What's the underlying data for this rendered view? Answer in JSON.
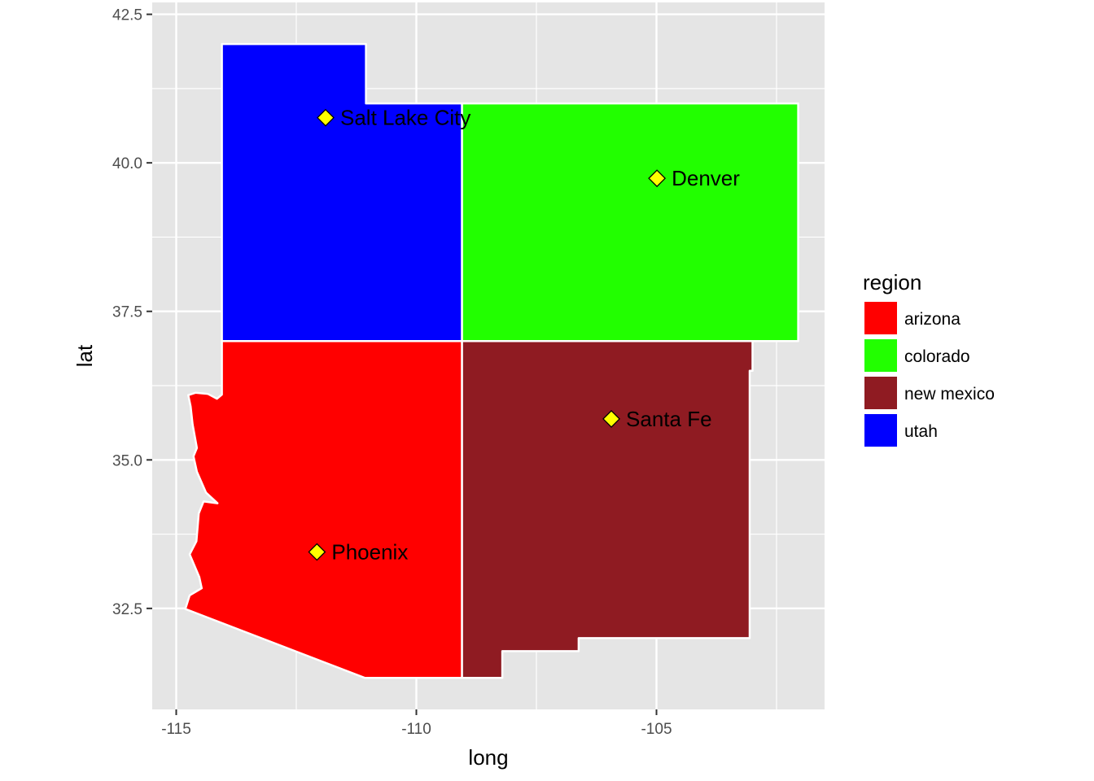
{
  "map": {
    "x_axis": {
      "title": "long",
      "ticks": [
        {
          "value": -115,
          "label": "-115"
        },
        {
          "value": -110,
          "label": "-110"
        },
        {
          "value": -105,
          "label": "-105"
        }
      ],
      "range": [
        -115.5,
        -101.5
      ]
    },
    "y_axis": {
      "title": "lat",
      "ticks": [
        {
          "value": 32.5,
          "label": "32.5"
        },
        {
          "value": 35.0,
          "label": "35.0"
        },
        {
          "value": 37.5,
          "label": "37.5"
        },
        {
          "value": 40.0,
          "label": "40.0"
        },
        {
          "value": 42.5,
          "label": "42.5"
        }
      ],
      "range": [
        30.8,
        42.7
      ]
    },
    "panel_background": "#e5e5e5",
    "gridline_color": "#ffffff",
    "border_color": "#ffffff",
    "legend": {
      "title": "region",
      "placement": "right",
      "entries": [
        {
          "label": "arizona",
          "color": "#ff0000"
        },
        {
          "label": "colorado",
          "color": "#22ff00"
        },
        {
          "label": "new mexico",
          "color": "#8f1b22"
        },
        {
          "label": "utah",
          "color": "#0000ff"
        }
      ]
    },
    "regions": [
      {
        "name": "utah",
        "color": "#0000ff",
        "boundary": [
          [
            -114.05,
            42.0
          ],
          [
            -111.05,
            42.0
          ],
          [
            -111.05,
            41.0
          ],
          [
            -109.05,
            41.0
          ],
          [
            -109.05,
            37.0
          ],
          [
            -114.05,
            37.0
          ]
        ]
      },
      {
        "name": "colorado",
        "color": "#22ff00",
        "boundary": [
          [
            -109.05,
            41.0
          ],
          [
            -102.05,
            41.0
          ],
          [
            -102.05,
            37.0
          ],
          [
            -109.05,
            37.0
          ]
        ]
      },
      {
        "name": "arizona",
        "color": "#ff0000",
        "boundary": [
          [
            -109.05,
            37.0
          ],
          [
            -109.05,
            31.33
          ],
          [
            -111.07,
            31.33
          ],
          [
            -114.81,
            32.49
          ],
          [
            -114.72,
            32.72
          ],
          [
            -114.47,
            32.84
          ],
          [
            -114.52,
            33.03
          ],
          [
            -114.72,
            33.41
          ],
          [
            -114.58,
            33.63
          ],
          [
            -114.53,
            34.1
          ],
          [
            -114.43,
            34.3
          ],
          [
            -114.14,
            34.27
          ],
          [
            -114.38,
            34.45
          ],
          [
            -114.57,
            34.8
          ],
          [
            -114.64,
            35.06
          ],
          [
            -114.57,
            35.2
          ],
          [
            -114.66,
            35.6
          ],
          [
            -114.7,
            35.9
          ],
          [
            -114.75,
            36.09
          ],
          [
            -114.6,
            36.13
          ],
          [
            -114.34,
            36.11
          ],
          [
            -114.15,
            36.03
          ],
          [
            -114.05,
            36.1
          ],
          [
            -114.05,
            37.0
          ]
        ]
      },
      {
        "name": "new mexico",
        "color": "#8f1b22",
        "boundary": [
          [
            -109.05,
            37.0
          ],
          [
            -103.0,
            37.0
          ],
          [
            -103.0,
            36.5
          ],
          [
            -103.06,
            36.5
          ],
          [
            -103.06,
            32.0
          ],
          [
            -106.62,
            32.0
          ],
          [
            -106.62,
            31.78
          ],
          [
            -108.21,
            31.78
          ],
          [
            -108.21,
            31.33
          ],
          [
            -109.05,
            31.33
          ]
        ]
      }
    ],
    "cities": [
      {
        "name": "Salt Lake City",
        "long": -111.89,
        "lat": 40.76
      },
      {
        "name": "Denver",
        "long": -104.99,
        "lat": 39.74
      },
      {
        "name": "Santa Fe",
        "long": -105.94,
        "lat": 35.69
      },
      {
        "name": "Phoenix",
        "long": -112.07,
        "lat": 33.45
      }
    ],
    "city_marker": {
      "shape": "diamond",
      "fill": "#ffff00",
      "stroke": "#000000"
    }
  }
}
